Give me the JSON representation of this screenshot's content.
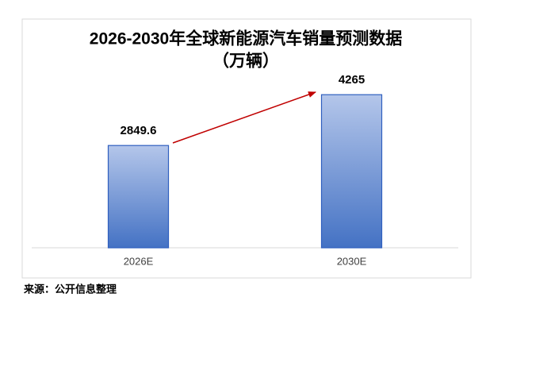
{
  "chart_data": {
    "type": "bar",
    "title": "2026-2030年全球新能源汽车销量预测数据",
    "subtitle": "（万辆）",
    "categories": [
      "2026E",
      "2030E"
    ],
    "values": [
      2849.6,
      4265
    ],
    "color": "#4472c4",
    "ylim": [
      0,
      5000
    ],
    "source": "来源：公开信息整理"
  }
}
